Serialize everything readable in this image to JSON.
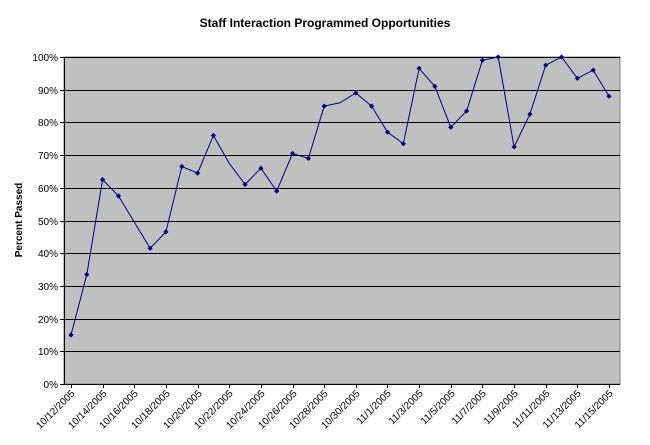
{
  "chart_data": {
    "type": "line",
    "title": "Staff Interaction Programmed Opportunities",
    "xlabel": "",
    "ylabel": "Percent Passed",
    "ylim": [
      0,
      100
    ],
    "y_ticks": [
      "0%",
      "10%",
      "20%",
      "30%",
      "40%",
      "50%",
      "60%",
      "70%",
      "80%",
      "90%",
      "100%"
    ],
    "x_ticks": [
      "10/12/2005",
      "10/14/2005",
      "10/16/2005",
      "10/18/2005",
      "10/20/2005",
      "10/22/2005",
      "10/24/2005",
      "10/26/2005",
      "10/28/2005",
      "10/30/2005",
      "11/1/2005",
      "11/3/2005",
      "11/5/2005",
      "11/7/2005",
      "11/9/2005",
      "11/11/2005",
      "11/13/2005",
      "11/15/2005"
    ],
    "grid": true,
    "legend": "none",
    "colors": {
      "line": "#000080",
      "plot_bg": "#c0c0c0",
      "grid": "#000000"
    },
    "series": [
      {
        "x": [
          "10/12/2005",
          "10/13/2005",
          "10/14/2005",
          "10/15/2005",
          "10/16/2005",
          "10/17/2005",
          "10/18/2005",
          "10/19/2005",
          "10/20/2005",
          "10/21/2005",
          "10/22/2005",
          "10/23/2005",
          "10/24/2005",
          "10/25/2005",
          "10/26/2005",
          "10/27/2005",
          "10/28/2005",
          "10/29/2005",
          "10/30/2005",
          "10/31/2005",
          "11/1/2005",
          "11/2/2005",
          "11/3/2005",
          "11/4/2005",
          "11/5/2005",
          "11/6/2005",
          "11/7/2005",
          "11/8/2005",
          "11/9/2005",
          "11/10/2005",
          "11/11/2005",
          "11/12/2005",
          "11/13/2005",
          "11/14/2005",
          "11/15/2005"
        ],
        "values": [
          15,
          33.5,
          62.5,
          57.5,
          49.5,
          41.5,
          46.5,
          66.5,
          64.5,
          76,
          67.5,
          61,
          66,
          59,
          70.5,
          69,
          85,
          86,
          89,
          85,
          77,
          73.5,
          96.5,
          91,
          78.5,
          83.5,
          99,
          100,
          72.5,
          82.5,
          97.5,
          100,
          93.5,
          96,
          88
        ],
        "markers": [
          true,
          true,
          true,
          true,
          false,
          true,
          true,
          true,
          true,
          true,
          false,
          true,
          true,
          true,
          true,
          true,
          true,
          false,
          true,
          true,
          true,
          true,
          true,
          true,
          true,
          true,
          true,
          true,
          true,
          true,
          true,
          true,
          true,
          true,
          true
        ]
      }
    ]
  }
}
